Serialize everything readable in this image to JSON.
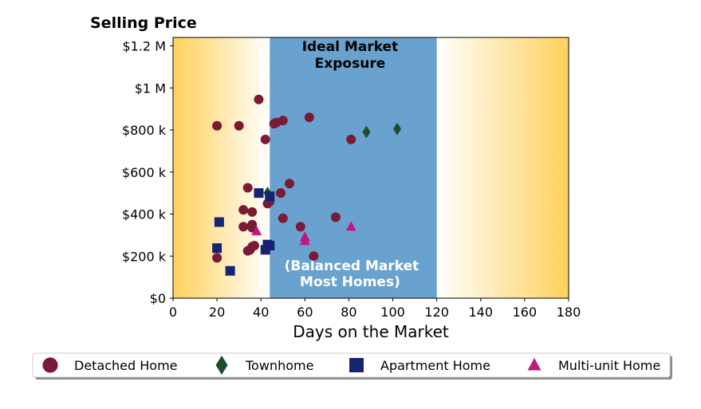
{
  "chart_data": {
    "type": "scatter",
    "title": "",
    "ylabel": "Selling Price",
    "xlabel": "Days on the Market",
    "xlim": [
      0,
      180
    ],
    "ylim": [
      0,
      1240000
    ],
    "x_ticks": [
      0,
      20,
      40,
      60,
      80,
      100,
      120,
      140,
      160,
      180
    ],
    "x_tick_labels": [
      "0",
      "20",
      "40",
      "60",
      "80",
      "100",
      "120",
      "140",
      "160",
      "180"
    ],
    "y_ticks": [
      0,
      200000,
      400000,
      600000,
      800000,
      1000000,
      1200000
    ],
    "y_tick_labels": [
      "$0",
      "$200 k",
      "$400 k",
      "$600 k",
      "$800 k",
      "$1 M",
      "$1.2 M"
    ],
    "grid": false,
    "legend_position": "bottom",
    "ideal_region": {
      "x_range": [
        44,
        120
      ],
      "color": "#6aa2cf",
      "label_top": [
        "Ideal Market",
        "Exposure"
      ],
      "label_bottom": [
        "(Balanced Market",
        "Most Homes)"
      ]
    },
    "background_gradient_color": "#ffd15c",
    "series": [
      {
        "name": "Detached Home",
        "marker": "circle",
        "color": "#7b1a35",
        "points": [
          [
            20,
            820000
          ],
          [
            30,
            820000
          ],
          [
            39,
            945000
          ],
          [
            42,
            755000
          ],
          [
            46,
            830000
          ],
          [
            47,
            835000
          ],
          [
            50,
            845000
          ],
          [
            62,
            860000
          ],
          [
            81,
            755000
          ],
          [
            34,
            525000
          ],
          [
            53,
            545000
          ],
          [
            49,
            500000
          ],
          [
            43,
            450000
          ],
          [
            44,
            460000
          ],
          [
            32,
            420000
          ],
          [
            36,
            410000
          ],
          [
            50,
            380000
          ],
          [
            74,
            385000
          ],
          [
            58,
            340000
          ],
          [
            32,
            340000
          ],
          [
            36,
            350000
          ],
          [
            36,
            335000
          ],
          [
            36,
            245000
          ],
          [
            37,
            250000
          ],
          [
            34,
            225000
          ],
          [
            35,
            230000
          ],
          [
            20,
            192000
          ],
          [
            64,
            200000
          ]
        ]
      },
      {
        "name": "Townhome",
        "marker": "diamond",
        "color": "#1e4d2b",
        "points": [
          [
            88,
            790000
          ],
          [
            102,
            805000
          ],
          [
            43,
            500000
          ]
        ]
      },
      {
        "name": "Apartment Home",
        "marker": "square",
        "color": "#152371",
        "points": [
          [
            39,
            500000
          ],
          [
            44,
            485000
          ],
          [
            21,
            362000
          ],
          [
            20,
            238000
          ],
          [
            43,
            255000
          ],
          [
            44,
            250000
          ],
          [
            42,
            230000
          ],
          [
            26,
            130000
          ]
        ]
      },
      {
        "name": "Multi-unit Home",
        "marker": "triangle",
        "color": "#c0197e",
        "points": [
          [
            38,
            318000
          ],
          [
            60,
            290000
          ],
          [
            60,
            272000
          ],
          [
            81,
            340000
          ]
        ]
      }
    ]
  }
}
